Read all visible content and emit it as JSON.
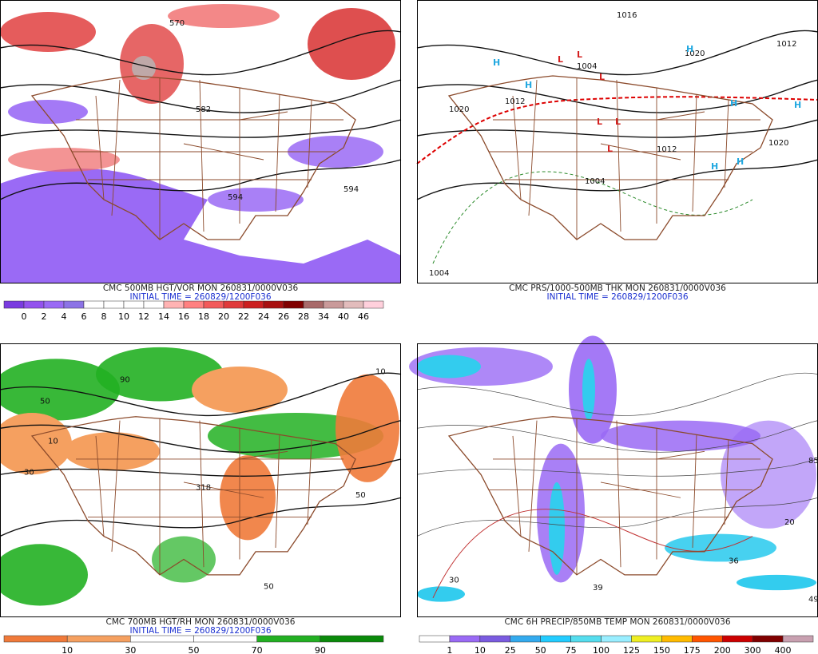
{
  "panels": [
    {
      "caption": "CMC 500MB HGT/VOR MON 260831/0000V036",
      "init": "INITIAL TIME = 260829/1200F036",
      "scale_labels": [
        "0",
        "2",
        "4",
        "6",
        "8",
        "10",
        "12",
        "14",
        "16",
        "18",
        "20",
        "22",
        "24",
        "26",
        "28",
        "34",
        "40",
        "46"
      ],
      "scale_colors": [
        "#7a3be0",
        "#9352ee",
        "#9a6af5",
        "#8c73e6",
        "#ffffff",
        "#ffffff",
        "#ffffff",
        "#ffffff",
        "#ffb3b3",
        "#ff8080",
        "#f25a5a",
        "#e03a3a",
        "#cc2020",
        "#a81010",
        "#800000",
        "#a86a6a",
        "#c99a9a",
        "#e2bcbc",
        "#ffd0dc"
      ],
      "contour_labels": [
        "570",
        "582",
        "594",
        "594"
      ]
    },
    {
      "caption": "CMC PRS/1000-500MB THK MON 260831/0000V036",
      "init": "INITIAL TIME = 260829/1200F036",
      "contour_labels": [
        "1020",
        "1012",
        "1004",
        "1012",
        "1004",
        "1020",
        "1004",
        "1016",
        "1012",
        "1020"
      ],
      "centers": [
        "H",
        "H",
        "H",
        "H",
        "H",
        "H",
        "H",
        "L",
        "L",
        "L",
        "L",
        "L",
        "L"
      ]
    },
    {
      "caption": "CMC 700MB HGT/RH MON 260831/0000V036",
      "init": "INITIAL TIME = 260829/1200F036",
      "scale_labels": [
        "10",
        "30",
        "50",
        "70",
        "90"
      ],
      "scale_colors": [
        "#f07a3a",
        "#f5a060",
        "#ffffff",
        "#ffffff",
        "#22b022",
        "#0a8a0a"
      ],
      "contour_labels": [
        "50",
        "90",
        "10",
        "30",
        "318",
        "50",
        "10",
        "50"
      ]
    },
    {
      "caption": "CMC 6H PRECIP/850MB TEMP MON 260831/0000V036",
      "scale_labels": [
        "1",
        "10",
        "25",
        "50",
        "75",
        "100",
        "125",
        "150",
        "175",
        "200",
        "300",
        "400"
      ],
      "scale_colors": [
        "#ffffff",
        "#9a6af5",
        "#7a5be0",
        "#33aaee",
        "#22ccff",
        "#55ddee",
        "#99eeff",
        "#eeee22",
        "#ffbb00",
        "#ff5500",
        "#cc0000",
        "#800000",
        "#c8a0b0"
      ],
      "contour_labels": [
        "30",
        "20",
        "36",
        "39",
        "49",
        "85"
      ]
    }
  ]
}
